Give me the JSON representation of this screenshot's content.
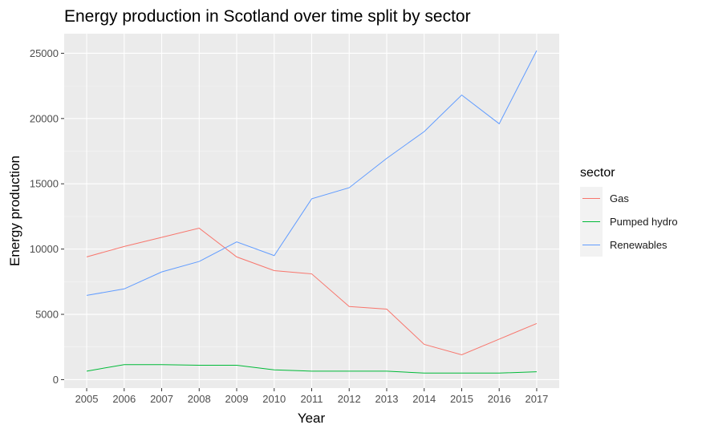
{
  "chart_data": {
    "type": "line",
    "title": "Energy production in Scotland over time split by sector",
    "xlabel": "Year",
    "ylabel": "Energy production",
    "x": [
      2005,
      2006,
      2007,
      2008,
      2009,
      2010,
      2011,
      2012,
      2013,
      2014,
      2015,
      2016,
      2017
    ],
    "xlim": [
      2004.4,
      2017.6
    ],
    "ylim": [
      -650,
      26500
    ],
    "yticks": [
      0,
      5000,
      10000,
      15000,
      20000,
      25000
    ],
    "grid": true,
    "legend": {
      "title": "sector",
      "placement": "right"
    },
    "series": [
      {
        "name": "Gas",
        "color": "#F8766D",
        "values": [
          9400,
          10200,
          10900,
          11600,
          9400,
          8350,
          8100,
          5600,
          5400,
          2700,
          1900,
          3100,
          4300
        ]
      },
      {
        "name": "Pumped hydro",
        "color": "#00BA38",
        "values": [
          650,
          1150,
          1150,
          1100,
          1100,
          750,
          650,
          650,
          650,
          500,
          500,
          500,
          600
        ]
      },
      {
        "name": "Renewables",
        "color": "#619CFF",
        "values": [
          6450,
          6950,
          8250,
          9050,
          10550,
          9500,
          13850,
          14700,
          16950,
          19000,
          21800,
          19600,
          25200
        ]
      }
    ]
  }
}
